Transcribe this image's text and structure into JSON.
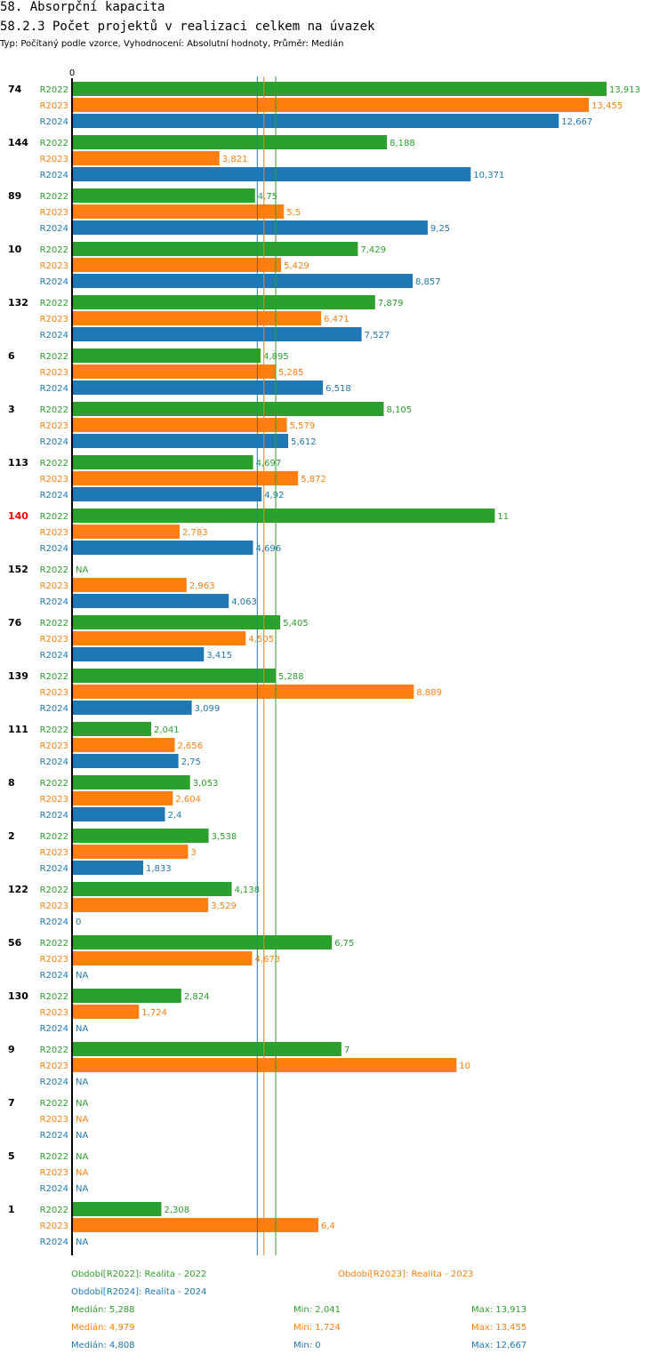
{
  "header": {
    "title": "58. Absorpční kapacita",
    "subtitle": "58.2.3 Počet projektů v realizaci celkem na úvazek",
    "meta": "Typ: Počítaný podle vzorce, Vyhodnocení: Absolutní hodnoty, Průměr: Medián"
  },
  "colors": {
    "R2022": "#2ca02c",
    "R2023": "#ff7f0e",
    "R2024": "#1f77b4",
    "highlight": "#ff0000"
  },
  "chart_data": {
    "type": "bar",
    "orientation": "horizontal",
    "axis_zero_label": "0",
    "xlim": [
      0,
      13.913
    ],
    "series": [
      "R2022",
      "R2023",
      "R2024"
    ],
    "groups": [
      {
        "id": "74",
        "highlight": false,
        "values": [
          13.913,
          13.455,
          12.667
        ],
        "labels": [
          "13,913",
          "13,455",
          "12,667"
        ]
      },
      {
        "id": "144",
        "highlight": false,
        "values": [
          8.188,
          3.821,
          10.371
        ],
        "labels": [
          "8,188",
          "3,821",
          "10,371"
        ]
      },
      {
        "id": "89",
        "highlight": false,
        "values": [
          4.75,
          5.5,
          9.25
        ],
        "labels": [
          "4,75",
          "5,5",
          "9,25"
        ]
      },
      {
        "id": "10",
        "highlight": false,
        "values": [
          7.429,
          5.429,
          8.857
        ],
        "labels": [
          "7,429",
          "5,429",
          "8,857"
        ]
      },
      {
        "id": "132",
        "highlight": false,
        "values": [
          7.879,
          6.471,
          7.527
        ],
        "labels": [
          "7,879",
          "6,471",
          "7,527"
        ]
      },
      {
        "id": "6",
        "highlight": false,
        "values": [
          4.895,
          5.285,
          6.518
        ],
        "labels": [
          "4,895",
          "5,285",
          "6,518"
        ]
      },
      {
        "id": "3",
        "highlight": false,
        "values": [
          8.105,
          5.579,
          5.612
        ],
        "labels": [
          "8,105",
          "5,579",
          "5,612"
        ]
      },
      {
        "id": "113",
        "highlight": false,
        "values": [
          4.697,
          5.872,
          4.92
        ],
        "labels": [
          "4,697",
          "5,872",
          "4,92"
        ]
      },
      {
        "id": "140",
        "highlight": true,
        "values": [
          11,
          2.783,
          4.696
        ],
        "labels": [
          "11",
          "2,783",
          "4,696"
        ]
      },
      {
        "id": "152",
        "highlight": false,
        "values": [
          null,
          2.963,
          4.063
        ],
        "labels": [
          "NA",
          "2,963",
          "4,063"
        ]
      },
      {
        "id": "76",
        "highlight": false,
        "values": [
          5.405,
          4.505,
          3.415
        ],
        "labels": [
          "5,405",
          "4,505",
          "3,415"
        ]
      },
      {
        "id": "139",
        "highlight": false,
        "values": [
          5.288,
          8.889,
          3.099
        ],
        "labels": [
          "5,288",
          "8,889",
          "3,099"
        ]
      },
      {
        "id": "111",
        "highlight": false,
        "values": [
          2.041,
          2.656,
          2.75
        ],
        "labels": [
          "2,041",
          "2,656",
          "2,75"
        ]
      },
      {
        "id": "8",
        "highlight": false,
        "values": [
          3.053,
          2.604,
          2.4
        ],
        "labels": [
          "3,053",
          "2,604",
          "2,4"
        ]
      },
      {
        "id": "2",
        "highlight": false,
        "values": [
          3.538,
          3,
          1.833
        ],
        "labels": [
          "3,538",
          "3",
          "1,833"
        ]
      },
      {
        "id": "122",
        "highlight": false,
        "values": [
          4.138,
          3.529,
          0
        ],
        "labels": [
          "4,138",
          "3,529",
          "0"
        ]
      },
      {
        "id": "56",
        "highlight": false,
        "values": [
          6.75,
          4.673,
          null
        ],
        "labels": [
          "6,75",
          "4,673",
          "NA"
        ]
      },
      {
        "id": "130",
        "highlight": false,
        "values": [
          2.824,
          1.724,
          null
        ],
        "labels": [
          "2,824",
          "1,724",
          "NA"
        ]
      },
      {
        "id": "9",
        "highlight": false,
        "values": [
          7,
          10,
          null
        ],
        "labels": [
          "7",
          "10",
          "NA"
        ]
      },
      {
        "id": "7",
        "highlight": false,
        "values": [
          null,
          null,
          null
        ],
        "labels": [
          "NA",
          "NA",
          "NA"
        ]
      },
      {
        "id": "5",
        "highlight": false,
        "values": [
          null,
          null,
          null
        ],
        "labels": [
          "NA",
          "NA",
          "NA"
        ]
      },
      {
        "id": "1",
        "highlight": false,
        "values": [
          2.308,
          6.4,
          null
        ],
        "labels": [
          "2,308",
          "6,4",
          "NA"
        ]
      }
    ],
    "medians": {
      "R2022": 5.288,
      "R2023": 4.979,
      "R2024": 4.808
    }
  },
  "legend": {
    "r2022": "Období[R2022]: Realita - 2022",
    "r2023": "Období[R2023]: Realita - 2023",
    "r2024": "Období[R2024]: Realita - 2024",
    "stats": [
      {
        "median": "Medián: 5,288",
        "min": "Min: 2,041",
        "max": "Max: 13,913"
      },
      {
        "median": "Medián: 4,979",
        "min": "Min: 1,724",
        "max": "Max: 13,455"
      },
      {
        "median": "Medián: 4,808",
        "min": "Min: 0",
        "max": "Max: 12,667"
      }
    ]
  }
}
